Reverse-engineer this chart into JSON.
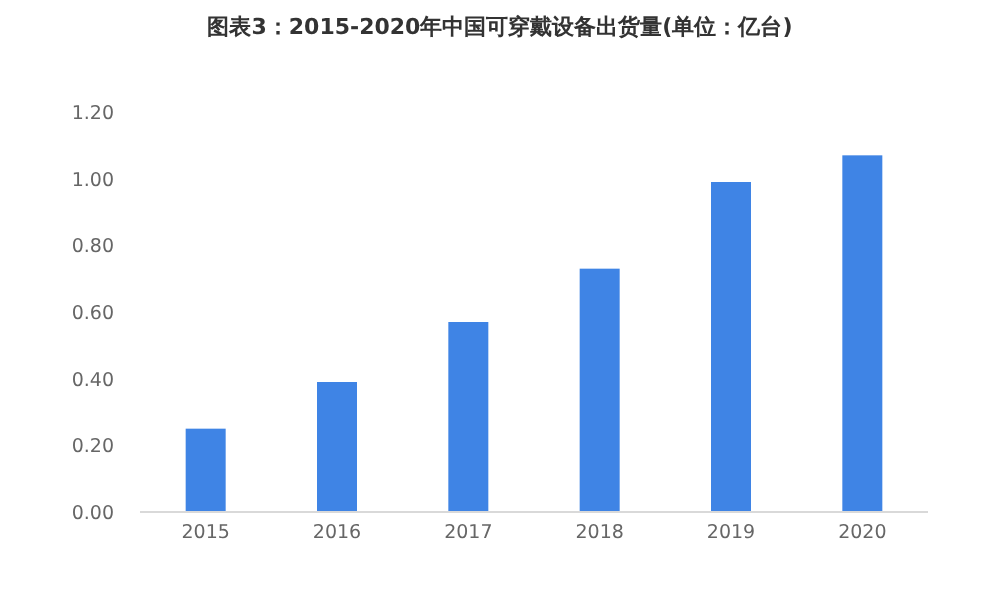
{
  "chart_data": {
    "type": "bar",
    "title": "图表3：2015-2020年中国可穿戴设备出货量(单位：亿台)",
    "categories": [
      "2015",
      "2016",
      "2017",
      "2018",
      "2019",
      "2020"
    ],
    "values": [
      0.25,
      0.39,
      0.57,
      0.73,
      0.99,
      1.07
    ],
    "color": "#3f84e5",
    "ylim": [
      0,
      1.2
    ],
    "yticks": [
      {
        "value": 0,
        "label": "0.00"
      },
      {
        "value": 0.2,
        "label": "0.20"
      },
      {
        "value": 0.4,
        "label": "0.40"
      },
      {
        "value": 0.6,
        "label": "0.60"
      },
      {
        "value": 0.8,
        "label": "0.80"
      },
      {
        "value": 1.0,
        "label": "1.00"
      },
      {
        "value": 1.2,
        "label": "1.20"
      }
    ],
    "grid": false
  }
}
